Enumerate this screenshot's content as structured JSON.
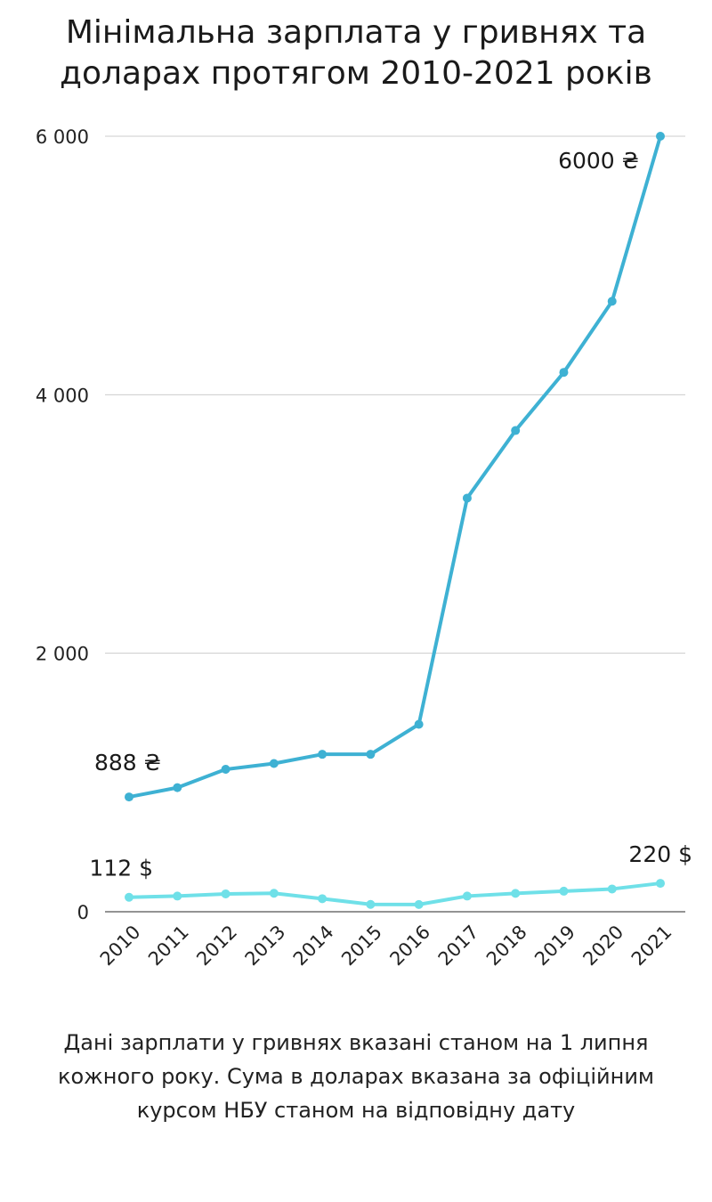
{
  "title_lines": [
    "Мінімальна зарплата у гривнях та",
    "доларах протягом 2010-2021 років"
  ],
  "footnote_lines": [
    "Дані зарплати у гривнях вказані станом на 1 липня",
    "кожного року. Сума в доларах вказана за офіційним",
    "курсом НБУ станом на відповідну дату"
  ],
  "chart_data": {
    "type": "line",
    "title": "Мінімальна зарплата у гривнях та доларах протягом 2010-2021 років",
    "xlabel": "",
    "ylabel": "",
    "categories": [
      "2010",
      "2011",
      "2012",
      "2013",
      "2014",
      "2015",
      "2016",
      "2017",
      "2018",
      "2019",
      "2020",
      "2021"
    ],
    "ylim": [
      0,
      6000
    ],
    "yticks": [
      0,
      2000,
      4000,
      6000
    ],
    "ytick_labels": [
      "0",
      "2 000",
      "4 000",
      "6 000"
    ],
    "grid": true,
    "series": [
      {
        "key": "uah",
        "color": "#3eb1d3",
        "values": [
          888,
          960,
          1102,
          1147,
          1218,
          1218,
          1450,
          3200,
          3723,
          4173,
          4723,
          6000
        ]
      },
      {
        "key": "usd",
        "color": "#6fe0e8",
        "values": [
          112,
          121,
          138,
          143,
          101,
          57,
          56,
          121,
          142,
          159,
          176,
          220
        ]
      }
    ],
    "annotations": [
      {
        "text": "6000 ₴",
        "series": "uah",
        "index": 11
      },
      {
        "text": "888 ₴",
        "series": "uah",
        "index": 0
      },
      {
        "text": "112 $",
        "series": "usd",
        "index": 0
      },
      {
        "text": "220 $",
        "series": "usd",
        "index": 11
      }
    ]
  }
}
